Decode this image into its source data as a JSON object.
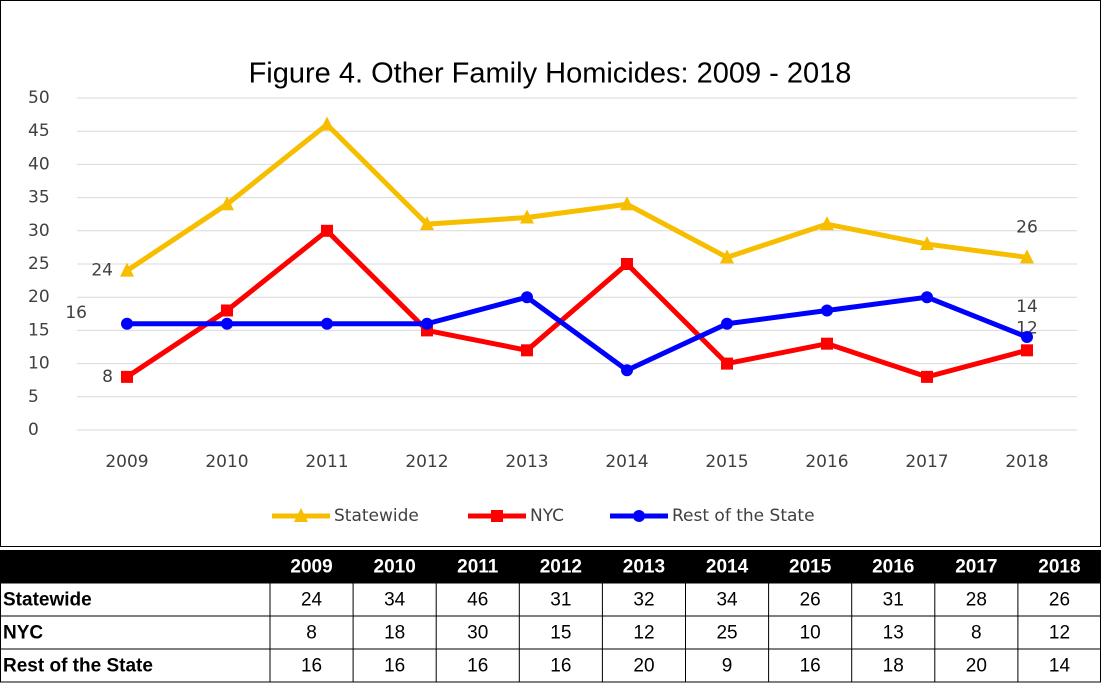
{
  "chart_data": {
    "type": "line",
    "title": "Figure 4. Other Family Homicides: 2009 - 2018",
    "categories": [
      "2009",
      "2010",
      "2011",
      "2012",
      "2013",
      "2014",
      "2015",
      "2016",
      "2017",
      "2018"
    ],
    "series": [
      {
        "name": "Statewide",
        "color": "#f7be00",
        "marker": "triangle",
        "values": [
          24,
          34,
          46,
          31,
          32,
          34,
          26,
          31,
          28,
          26
        ]
      },
      {
        "name": "NYC",
        "color": "#ff0000",
        "marker": "square",
        "values": [
          8,
          18,
          30,
          15,
          12,
          25,
          10,
          13,
          8,
          12
        ]
      },
      {
        "name": "Rest of the State",
        "color": "#0000ff",
        "marker": "circle",
        "values": [
          16,
          16,
          16,
          16,
          20,
          9,
          16,
          18,
          20,
          14
        ]
      }
    ],
    "ylim": [
      0,
      50
    ],
    "yticks": [
      0,
      5,
      10,
      15,
      20,
      25,
      30,
      35,
      40,
      45,
      50
    ],
    "grid": true,
    "data_labels": "ends",
    "legend": "bottom",
    "table": true
  }
}
